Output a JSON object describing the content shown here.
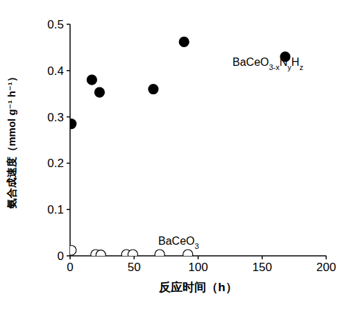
{
  "chart_data": {
    "type": "scatter",
    "x_label": "反应时间（h）",
    "y_label": "氨合成速度（mmol g⁻¹ h⁻¹）",
    "xlim": [
      0,
      200
    ],
    "ylim": [
      0,
      0.5
    ],
    "xticks": [
      0,
      50,
      100,
      150,
      200
    ],
    "yticks": [
      0,
      0.1,
      0.2,
      0.3,
      0.4,
      0.5
    ],
    "grid": false,
    "series": [
      {
        "name": "BaCeO3-xNyHz",
        "color": "#000000",
        "marker": "circle",
        "x": [
          1,
          17,
          23,
          65,
          89,
          168
        ],
        "values": [
          0.285,
          0.38,
          0.353,
          0.36,
          0.462,
          0.43
        ]
      },
      {
        "name": "BaCeO3",
        "color": "#000000",
        "marker": "open_circle",
        "x": [
          1,
          20,
          24,
          44,
          49,
          70,
          92
        ],
        "values": [
          0.012,
          0.003,
          0.002,
          0.003,
          0.003,
          0.003,
          0.003
        ]
      }
    ]
  }
}
